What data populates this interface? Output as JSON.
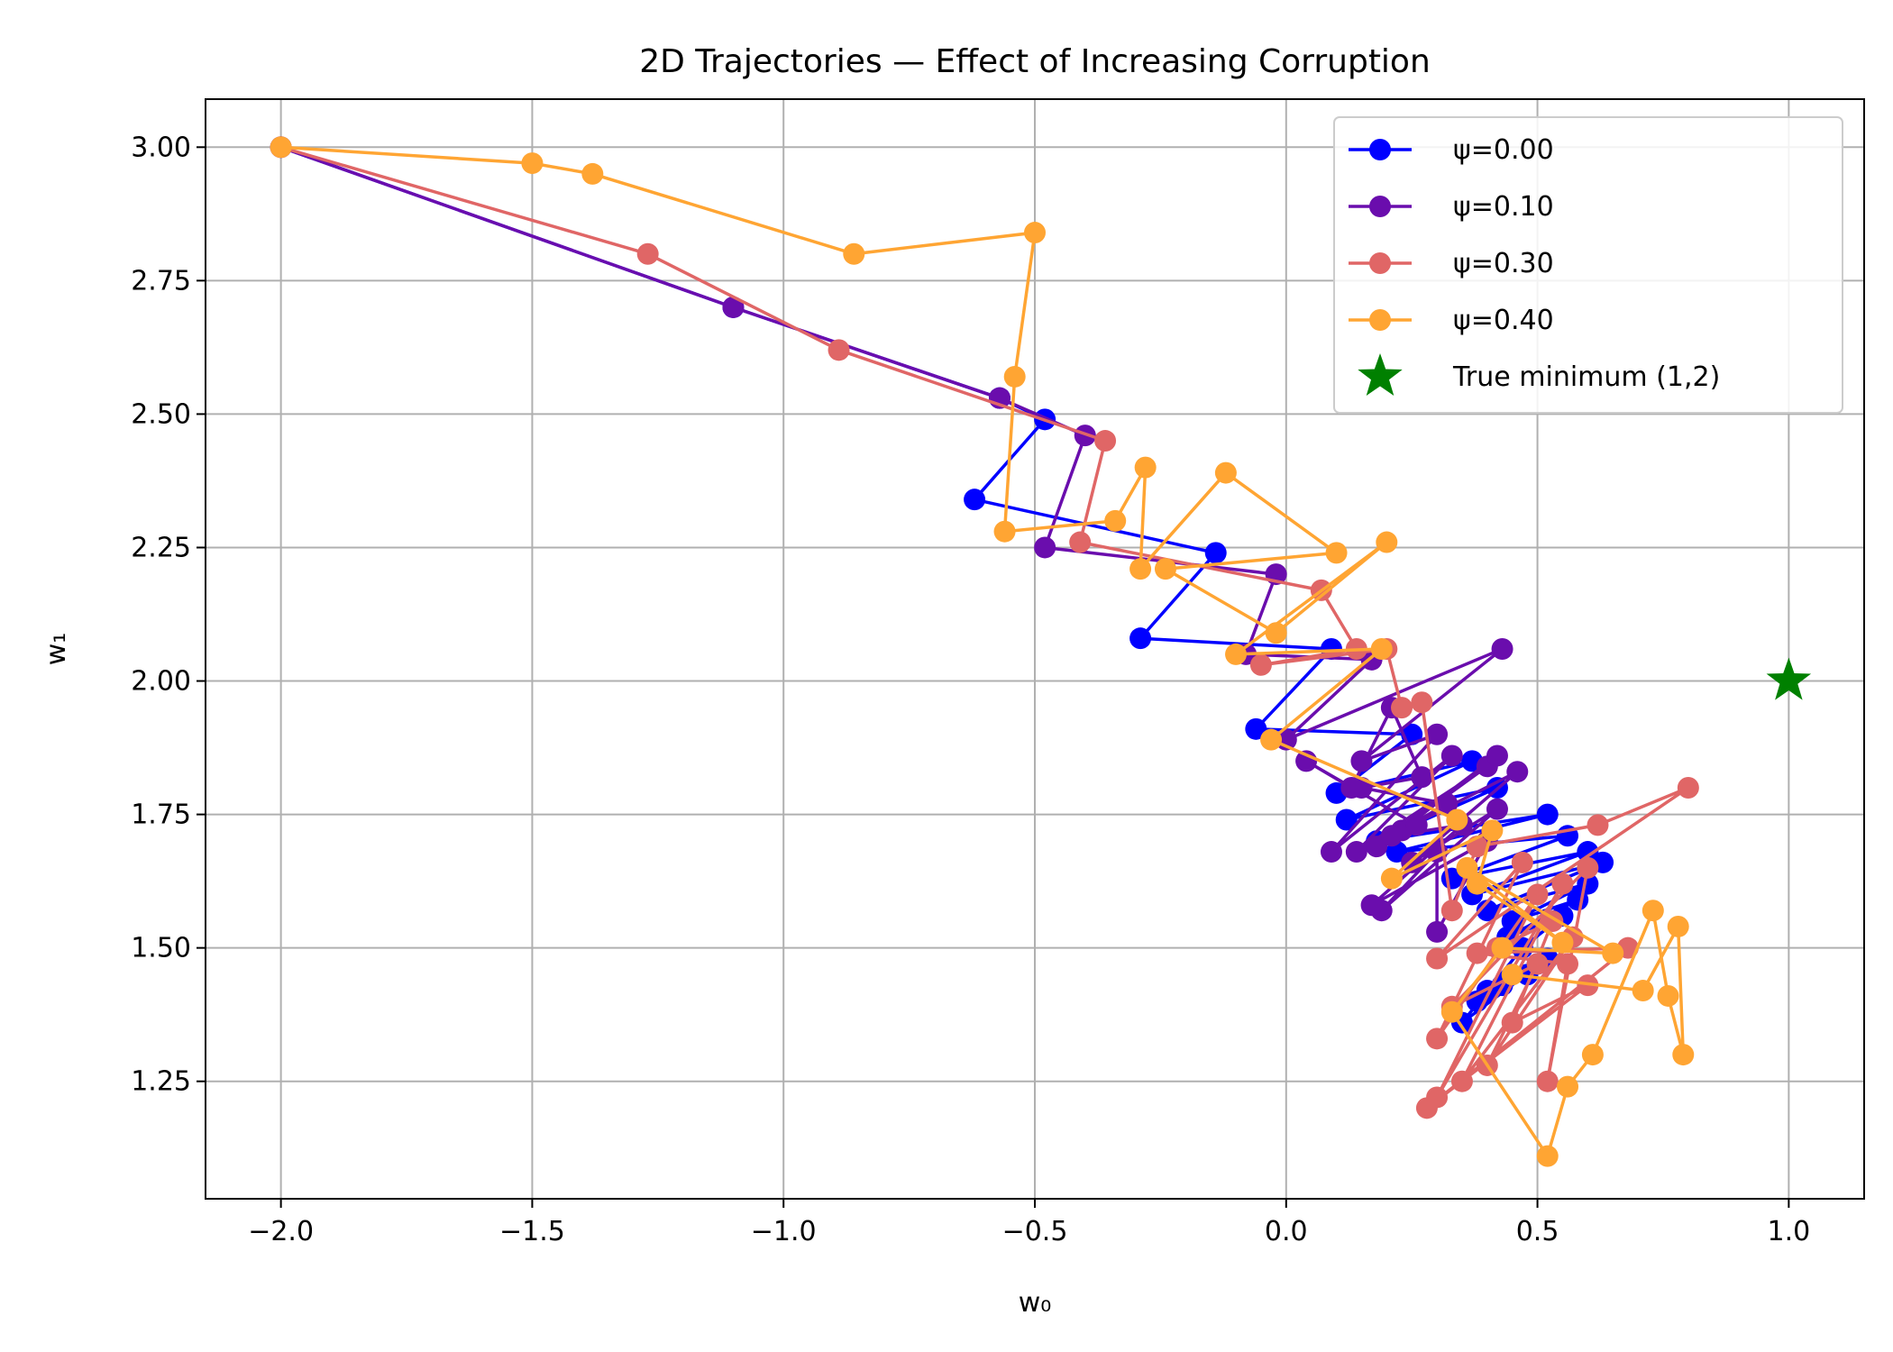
{
  "chart_data": {
    "type": "line",
    "title": "2D Trajectories — Effect of Increasing Corruption",
    "xlabel": "w₀",
    "ylabel": "w₁",
    "xlim": [
      -2.15,
      1.15
    ],
    "ylim": [
      1.03,
      3.09
    ],
    "x_ticks": [
      -2.0,
      -1.5,
      -1.0,
      -0.5,
      0.0,
      0.5,
      1.0
    ],
    "x_tick_labels": [
      "−2.0",
      "−1.5",
      "−1.0",
      "−0.5",
      "0.0",
      "0.5",
      "1.0"
    ],
    "y_ticks": [
      1.25,
      1.5,
      1.75,
      2.0,
      2.25,
      2.5,
      2.75,
      3.0
    ],
    "y_tick_labels": [
      "1.25",
      "1.50",
      "1.75",
      "2.00",
      "2.25",
      "2.50",
      "2.75",
      "3.00"
    ],
    "grid": true,
    "legend_position": "top-right",
    "series": [
      {
        "name": "ψ=0.00",
        "color": "#0000ff",
        "points": [
          [
            -2.0,
            3.0
          ],
          [
            -1.1,
            2.7
          ],
          [
            -0.57,
            2.53
          ],
          [
            -0.48,
            2.49
          ],
          [
            -0.62,
            2.34
          ],
          [
            -0.14,
            2.24
          ],
          [
            -0.29,
            2.08
          ],
          [
            0.09,
            2.06
          ],
          [
            -0.06,
            1.91
          ],
          [
            0.25,
            1.9
          ],
          [
            0.1,
            1.79
          ],
          [
            0.37,
            1.85
          ],
          [
            0.12,
            1.74
          ],
          [
            0.42,
            1.8
          ],
          [
            0.18,
            1.7
          ],
          [
            0.52,
            1.75
          ],
          [
            0.22,
            1.68
          ],
          [
            0.56,
            1.71
          ],
          [
            0.33,
            1.63
          ],
          [
            0.6,
            1.68
          ],
          [
            0.37,
            1.6
          ],
          [
            0.63,
            1.66
          ],
          [
            0.4,
            1.57
          ],
          [
            0.6,
            1.62
          ],
          [
            0.45,
            1.55
          ],
          [
            0.58,
            1.59
          ],
          [
            0.44,
            1.52
          ],
          [
            0.55,
            1.56
          ],
          [
            0.47,
            1.5
          ],
          [
            0.35,
            1.36
          ],
          [
            0.52,
            1.48
          ],
          [
            0.38,
            1.4
          ],
          [
            0.48,
            1.45
          ],
          [
            0.4,
            1.42
          ],
          [
            0.5,
            1.47
          ],
          [
            0.43,
            1.43
          ]
        ]
      },
      {
        "name": "ψ=0.10",
        "color": "#6a0dad",
        "points": [
          [
            -2.0,
            3.0
          ],
          [
            -1.1,
            2.7
          ],
          [
            -0.57,
            2.53
          ],
          [
            -0.4,
            2.46
          ],
          [
            -0.48,
            2.25
          ],
          [
            -0.02,
            2.2
          ],
          [
            -0.08,
            2.05
          ],
          [
            0.17,
            2.04
          ],
          [
            0.0,
            1.89
          ],
          [
            0.43,
            2.06
          ],
          [
            0.15,
            1.85
          ],
          [
            0.3,
            1.9
          ],
          [
            0.09,
            1.68
          ],
          [
            0.33,
            1.86
          ],
          [
            0.14,
            1.68
          ],
          [
            0.4,
            1.84
          ],
          [
            0.18,
            1.69
          ],
          [
            0.42,
            1.86
          ],
          [
            0.23,
            1.72
          ],
          [
            0.46,
            1.83
          ],
          [
            0.25,
            1.66
          ],
          [
            0.42,
            1.76
          ],
          [
            0.19,
            1.57
          ],
          [
            0.3,
            1.68
          ],
          [
            0.3,
            1.53
          ],
          [
            0.4,
            1.7
          ],
          [
            0.17,
            1.58
          ],
          [
            0.35,
            1.73
          ],
          [
            0.21,
            1.71
          ],
          [
            0.32,
            1.77
          ],
          [
            0.15,
            1.8
          ],
          [
            0.27,
            1.82
          ],
          [
            0.21,
            1.95
          ],
          [
            0.13,
            1.8
          ],
          [
            0.04,
            1.85
          ],
          [
            0.26,
            1.73
          ]
        ]
      },
      {
        "name": "ψ=0.30",
        "color": "#e06666",
        "points": [
          [
            -2.0,
            3.0
          ],
          [
            -1.27,
            2.8
          ],
          [
            -0.89,
            2.62
          ],
          [
            -0.36,
            2.45
          ],
          [
            -0.41,
            2.26
          ],
          [
            0.07,
            2.17
          ],
          [
            0.14,
            2.06
          ],
          [
            -0.05,
            2.03
          ],
          [
            0.2,
            2.06
          ],
          [
            0.23,
            1.95
          ],
          [
            0.27,
            1.96
          ],
          [
            0.33,
            1.57
          ],
          [
            0.38,
            1.69
          ],
          [
            0.62,
            1.73
          ],
          [
            0.8,
            1.8
          ],
          [
            0.3,
            1.48
          ],
          [
            0.47,
            1.66
          ],
          [
            0.3,
            1.33
          ],
          [
            0.5,
            1.6
          ],
          [
            0.3,
            1.22
          ],
          [
            0.55,
            1.62
          ],
          [
            0.35,
            1.25
          ],
          [
            0.57,
            1.52
          ],
          [
            0.4,
            1.28
          ],
          [
            0.5,
            1.47
          ],
          [
            0.33,
            1.39
          ],
          [
            0.6,
            1.65
          ],
          [
            0.52,
            1.25
          ],
          [
            0.56,
            1.47
          ],
          [
            0.38,
            1.49
          ],
          [
            0.68,
            1.5
          ],
          [
            0.28,
            1.2
          ],
          [
            0.6,
            1.43
          ],
          [
            0.45,
            1.36
          ],
          [
            0.53,
            1.55
          ],
          [
            0.42,
            1.5
          ]
        ]
      },
      {
        "name": "ψ=0.40",
        "color": "#ffa533",
        "points": [
          [
            -2.0,
            3.0
          ],
          [
            -1.5,
            2.97
          ],
          [
            -1.38,
            2.95
          ],
          [
            -0.86,
            2.8
          ],
          [
            -0.5,
            2.84
          ],
          [
            -0.54,
            2.57
          ],
          [
            -0.56,
            2.28
          ],
          [
            -0.34,
            2.3
          ],
          [
            -0.28,
            2.4
          ],
          [
            -0.29,
            2.21
          ],
          [
            -0.12,
            2.39
          ],
          [
            0.1,
            2.24
          ],
          [
            -0.24,
            2.21
          ],
          [
            -0.02,
            2.09
          ],
          [
            0.2,
            2.26
          ],
          [
            -0.1,
            2.05
          ],
          [
            0.19,
            2.06
          ],
          [
            -0.03,
            1.89
          ],
          [
            0.34,
            1.74
          ],
          [
            0.21,
            1.63
          ],
          [
            0.41,
            1.72
          ],
          [
            0.38,
            1.62
          ],
          [
            0.55,
            1.51
          ],
          [
            0.36,
            1.65
          ],
          [
            0.65,
            1.49
          ],
          [
            0.43,
            1.5
          ],
          [
            0.33,
            1.38
          ],
          [
            0.52,
            1.11
          ],
          [
            0.56,
            1.24
          ],
          [
            0.61,
            1.3
          ],
          [
            0.73,
            1.57
          ],
          [
            0.76,
            1.41
          ],
          [
            0.79,
            1.3
          ],
          [
            0.78,
            1.54
          ],
          [
            0.71,
            1.42
          ],
          [
            0.45,
            1.45
          ]
        ]
      }
    ],
    "true_minimum": {
      "name": "True minimum (1,2)",
      "color": "#008000",
      "point": [
        1.0,
        2.0
      ]
    }
  }
}
